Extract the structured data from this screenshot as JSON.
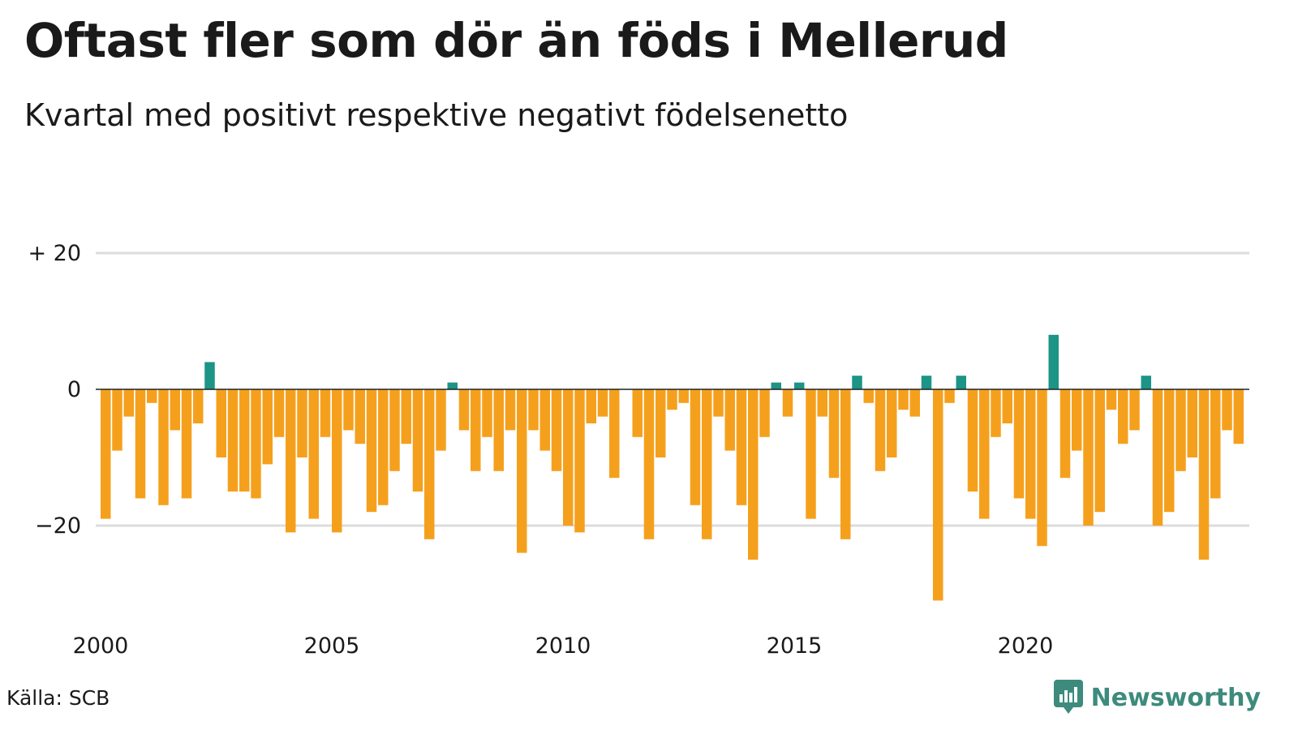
{
  "title": "Oftast fler som dör än föds i Mellerud",
  "subtitle": "Kvartal med positivt respektive negativt födelsenetto",
  "source": "Källa: SCB",
  "logo_text": "Newsworthy",
  "colors": {
    "positive": "#1c9486",
    "negative": "#f5a01d",
    "grid": "#dcdcdc",
    "zero_line": "#222222",
    "logo": "#3d8b7d"
  },
  "chart_data": {
    "type": "bar",
    "x_start": "2000 Q1",
    "frequency": "quarterly",
    "ylim": [
      -31,
      20
    ],
    "y_ticks": [
      20,
      0,
      -20
    ],
    "y_tick_labels": [
      "+ 20",
      "0",
      "−20"
    ],
    "x_ticks": [
      2000,
      2005,
      2010,
      2015,
      2020
    ],
    "x_tick_labels": [
      "2000",
      "2005",
      "2010",
      "2015",
      "2020"
    ],
    "values": [
      -19,
      -9,
      -4,
      -16,
      -2,
      -17,
      -6,
      -16,
      -5,
      4,
      -10,
      -15,
      -15,
      -16,
      -11,
      -7,
      -21,
      -10,
      -19,
      -7,
      -21,
      -6,
      -8,
      -18,
      -17,
      -12,
      -8,
      -15,
      -22,
      -9,
      1,
      -6,
      -12,
      -7,
      -12,
      -6,
      -24,
      -6,
      -9,
      -12,
      -20,
      -21,
      -5,
      -4,
      -13,
      0,
      -7,
      -22,
      -10,
      -3,
      -2,
      -17,
      -22,
      -4,
      -9,
      -17,
      -25,
      -7,
      1,
      -4,
      1,
      -19,
      -4,
      -13,
      -22,
      2,
      -2,
      -12,
      -10,
      -3,
      -4,
      2,
      -31,
      -2,
      2,
      -15,
      -19,
      -7,
      -5,
      -16,
      -19,
      -23,
      8,
      -13,
      -9,
      -20,
      -18,
      -3,
      -8,
      -6,
      2,
      -20,
      -18,
      -12,
      -10,
      -25,
      -16,
      -6,
      -8
    ]
  }
}
